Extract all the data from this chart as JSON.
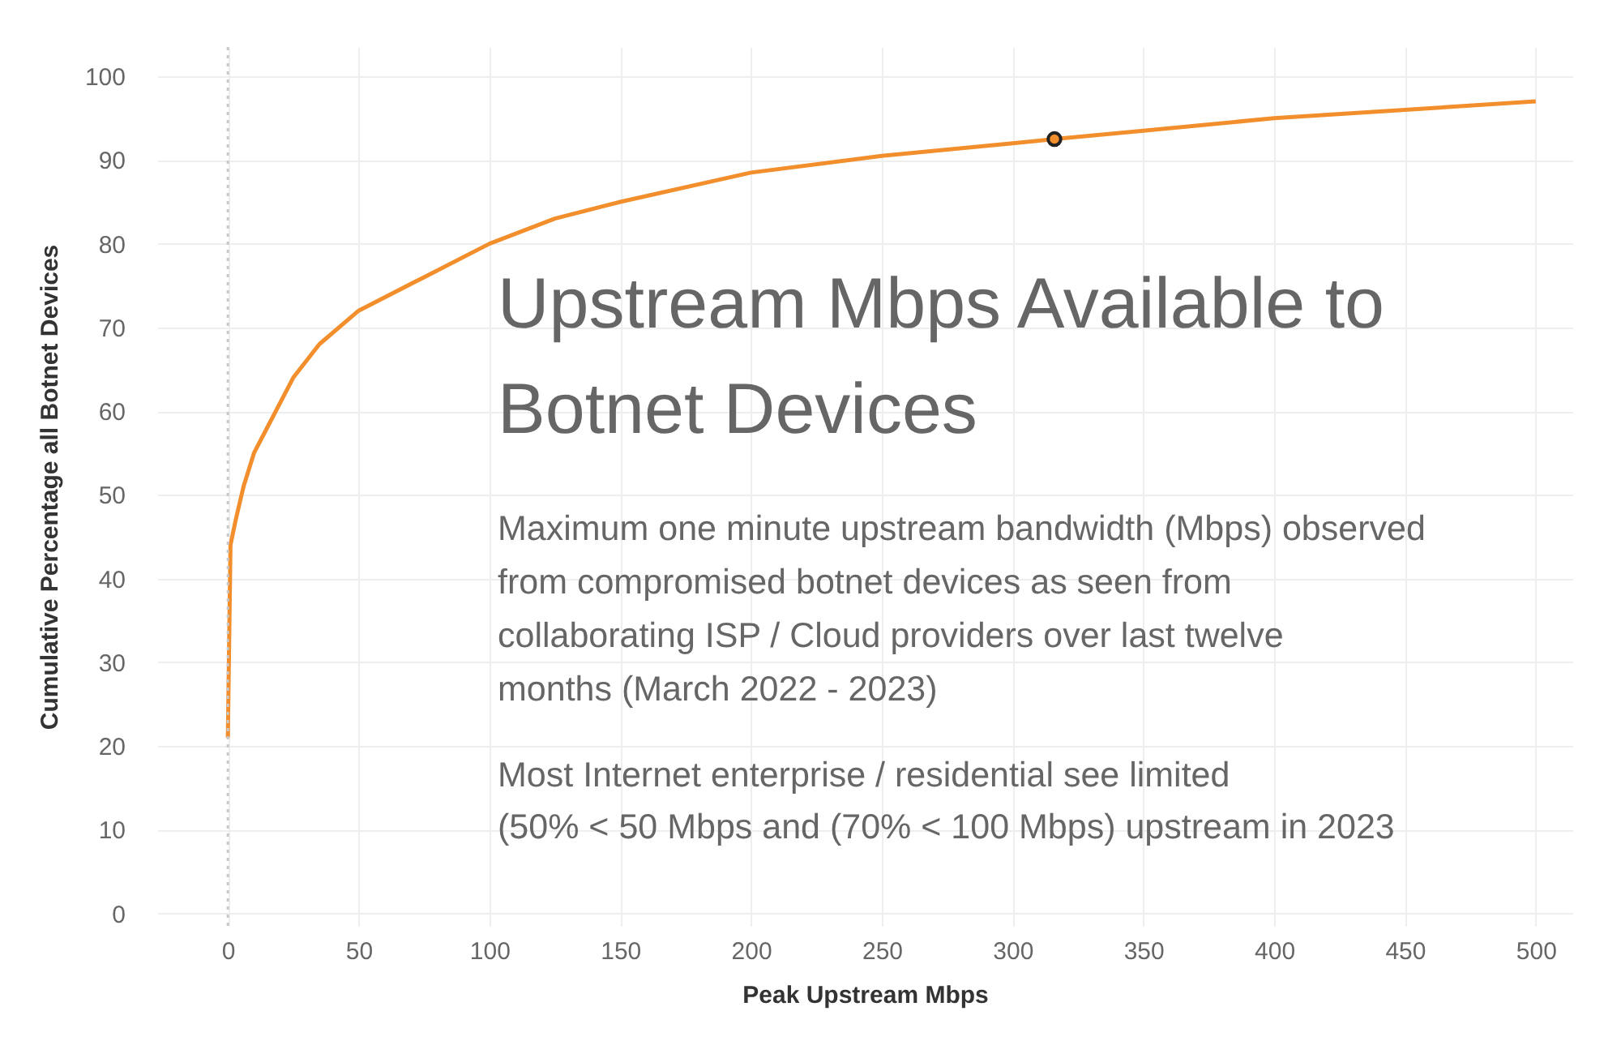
{
  "chart_data": {
    "type": "line",
    "title": "Upstream Mbps Available to Botnet Devices",
    "subtitle": "Maximum one minute upstream bandwidth (Mbps) observed from compromised botnet devices as seen from collaborating ISP / Cloud providers over last twelve months (March 2022 - 2023)",
    "annotations": [
      "Most Internet enterprise / residential see limited (50% < 50 Mbps and (70% < 100 Mbps) upstream in 2023"
    ],
    "xlabel": "Peak Upstream Mbps",
    "ylabel": "Cumulative Percentage all Botnet Devices",
    "series": [
      {
        "type": "line",
        "color": "#f28e2b",
        "x": [
          0,
          1,
          3,
          6,
          10,
          15,
          25,
          35,
          50,
          75,
          100,
          125,
          150,
          200,
          250,
          300,
          316,
          350,
          400,
          450,
          500
        ],
        "values": [
          21,
          44,
          47,
          51,
          55,
          58,
          64,
          68,
          72,
          76,
          80,
          83,
          85,
          88.5,
          90.5,
          92,
          92.5,
          93.5,
          95,
          96,
          97
        ]
      },
      {
        "type": "scatter",
        "color": "#f28e2b",
        "marker": "circle",
        "x": [
          316
        ],
        "values": [
          92.5
        ]
      }
    ],
    "xlim": [
      -27,
      514
    ],
    "ylim": [
      -1.5,
      103.5
    ],
    "xticks": [
      0,
      50,
      100,
      150,
      200,
      250,
      300,
      350,
      400,
      450,
      500
    ],
    "yticks": [
      0,
      10,
      20,
      30,
      40,
      50,
      60,
      70,
      80,
      90,
      100
    ],
    "grid": true,
    "ref_lines": [
      {
        "axis": "x",
        "value": 0,
        "line_style": "dotted",
        "color": "#c8c8c8"
      }
    ]
  }
}
